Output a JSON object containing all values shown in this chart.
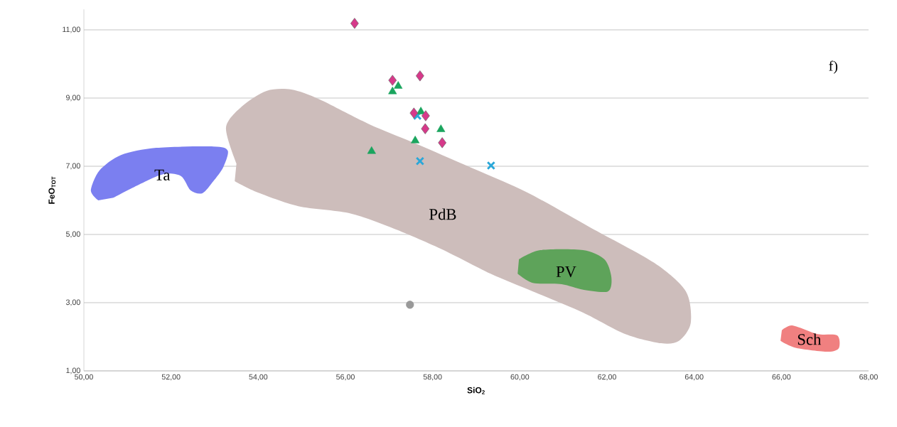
{
  "chart_data": {
    "type": "scatter",
    "xlabel": "SiO$_{2}$",
    "ylabel": "FeO$_{TOT}$",
    "xlim": [
      50,
      68
    ],
    "ylim": [
      1,
      11.6
    ],
    "grid": "y",
    "xticks": [
      {
        "value": 50,
        "label": "50,00"
      },
      {
        "value": 52,
        "label": "52,00"
      },
      {
        "value": 54,
        "label": "54,00"
      },
      {
        "value": 56,
        "label": "56,00"
      },
      {
        "value": 58,
        "label": "58,00"
      },
      {
        "value": 60,
        "label": "60,00"
      },
      {
        "value": 62,
        "label": "62,00"
      },
      {
        "value": 64,
        "label": "64,00"
      },
      {
        "value": 66,
        "label": "66,00"
      },
      {
        "value": 68,
        "label": "68,00"
      }
    ],
    "yticks": [
      {
        "value": 1,
        "label": "1,00"
      },
      {
        "value": 3,
        "label": "3,00"
      },
      {
        "value": 5,
        "label": "5,00"
      },
      {
        "value": 7,
        "label": "7,00"
      },
      {
        "value": 9,
        "label": "9,00"
      },
      {
        "value": 11,
        "label": "11,00"
      }
    ],
    "series": [
      {
        "type": "area",
        "name": "PdB",
        "color": "#cdbdbb",
        "x": [
          53.5,
          53.26,
          53.62,
          54.19,
          54.76,
          55.41,
          56.55,
          57.53,
          58.67,
          60.14,
          61.61,
          63.08,
          63.81,
          63.92,
          63.65,
          63.24,
          62.42,
          61.45,
          60.3,
          59.33,
          58.19,
          57.04,
          56.07,
          54.92,
          53.95,
          53.46
        ],
        "values": [
          7.08,
          8.13,
          8.75,
          9.21,
          9.25,
          8.96,
          8.23,
          7.71,
          7.08,
          6.25,
          5.21,
          4.17,
          3.33,
          2.4,
          1.88,
          1.81,
          2.08,
          2.71,
          3.33,
          3.85,
          4.58,
          5.21,
          5.63,
          5.83,
          6.25,
          6.56
        ]
      },
      {
        "type": "area",
        "name": "Ta",
        "color": "#7b7ff0",
        "x": [
          50.33,
          50.16,
          50.36,
          50.85,
          51.66,
          52.97,
          53.3,
          53.2,
          52.97,
          52.72,
          52.45,
          52.23,
          51.83,
          51.26,
          50.68
        ],
        "values": [
          6.0,
          6.29,
          6.88,
          7.33,
          7.54,
          7.58,
          7.46,
          6.98,
          6.56,
          6.21,
          6.29,
          6.71,
          6.77,
          6.46,
          6.08
        ]
      },
      {
        "type": "area",
        "name": "PV",
        "color": "#5ea35a",
        "x": [
          59.98,
          60.47,
          61.45,
          61.94,
          62.1,
          62.02,
          61.45,
          60.96,
          60.3,
          59.95
        ],
        "values": [
          4.27,
          4.54,
          4.54,
          4.27,
          3.75,
          3.33,
          3.38,
          3.54,
          3.58,
          3.85
        ]
      },
      {
        "type": "area",
        "name": "Sch",
        "color": "#f08080",
        "x": [
          66.01,
          66.26,
          66.83,
          67.28,
          67.32,
          67.07,
          66.34,
          65.98
        ],
        "values": [
          2.19,
          2.33,
          2.08,
          2.04,
          1.67,
          1.56,
          1.67,
          1.88
        ]
      },
      {
        "marker": "circle",
        "color": "#999999",
        "x": [
          57.48
        ],
        "values": [
          2.94
        ]
      },
      {
        "marker": "cross",
        "color": "#2ba7d8",
        "x": [
          57.65,
          57.71,
          59.34
        ],
        "values": [
          8.48,
          7.15,
          7.02
        ]
      },
      {
        "marker": "triangle",
        "color": "#1aa55e",
        "x": [
          56.6,
          57.08,
          57.21,
          57.6,
          57.73,
          58.19
        ],
        "values": [
          7.44,
          9.19,
          9.35,
          7.75,
          8.6,
          8.08
        ]
      },
      {
        "marker": "diamond",
        "color": "#d6398a",
        "x": [
          56.21,
          57.08,
          57.71,
          57.57,
          57.84,
          57.83,
          58.22
        ],
        "values": [
          11.19,
          9.52,
          9.65,
          8.56,
          8.48,
          8.1,
          7.69
        ]
      }
    ],
    "annotations": [
      "f)"
    ]
  }
}
